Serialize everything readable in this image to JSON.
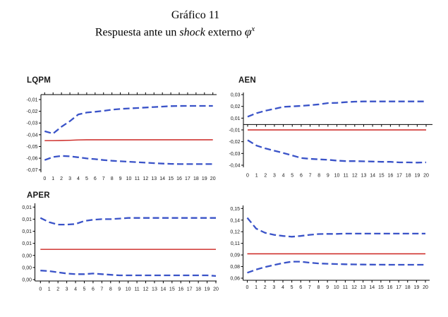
{
  "header": {
    "line1": "Gráfico 11",
    "line2_prefix": "Respuesta ante un ",
    "line2_italic": "shock",
    "line2_suffix": " externo ",
    "line2_symbol": "φ",
    "line2_superscript": "x"
  },
  "colors": {
    "band": "#3a53c8",
    "center": "#cc2420",
    "axis": "#000000",
    "background": "#ffffff"
  },
  "chart_data": [
    {
      "type": "line",
      "title": "LQPM",
      "x_axis_position": "top",
      "x_labels": [
        "0",
        "1",
        "2",
        "3",
        "4",
        "5",
        "6",
        "7",
        "8",
        "9",
        "10",
        "11",
        "12",
        "13",
        "14",
        "15",
        "16",
        "17",
        "18",
        "19",
        "20"
      ],
      "y_axis_labels": [
        "-0,01",
        "-0,02",
        "-0,03",
        "-0,04",
        "-0,05",
        "-0,06",
        "-0,07"
      ],
      "y_anchor_values": [
        -0.01,
        -0.02,
        -0.03,
        -0.04,
        -0.05,
        -0.06,
        -0.07
      ],
      "series": [
        {
          "name": "upper-band",
          "style": "dashed",
          "color": "#3a53c8",
          "values": [
            -0.037,
            -0.039,
            -0.0332,
            -0.0284,
            -0.0227,
            -0.0211,
            -0.0204,
            -0.0196,
            -0.0186,
            -0.018,
            -0.0176,
            -0.0172,
            -0.0168,
            -0.0164,
            -0.016,
            -0.0156,
            -0.0155,
            -0.0154,
            -0.0154,
            -0.0154,
            -0.0154
          ]
        },
        {
          "name": "center-estimate",
          "style": "solid",
          "color": "#cc2420",
          "values": [
            -0.045,
            -0.045,
            -0.0449,
            -0.0447,
            -0.0444,
            -0.0443,
            -0.0443,
            -0.0443,
            -0.0443,
            -0.0443,
            -0.0443,
            -0.0443,
            -0.0443,
            -0.0443,
            -0.0443,
            -0.0443,
            -0.0443,
            -0.0443,
            -0.0443,
            -0.0443,
            -0.0443
          ]
        },
        {
          "name": "lower-band",
          "style": "dashed",
          "color": "#3a53c8",
          "values": [
            -0.0616,
            -0.059,
            -0.058,
            -0.0584,
            -0.0592,
            -0.0602,
            -0.0608,
            -0.0616,
            -0.0622,
            -0.0626,
            -0.063,
            -0.0634,
            -0.0638,
            -0.0642,
            -0.0646,
            -0.0648,
            -0.065,
            -0.065,
            -0.065,
            -0.065,
            -0.065
          ]
        }
      ]
    },
    {
      "type": "line",
      "title": "AEN",
      "x_axis_position": "zero",
      "x_labels": [
        "0",
        "1",
        "2",
        "3",
        "4",
        "5",
        "6",
        "7",
        "8",
        "9",
        "10",
        "11",
        "12",
        "13",
        "14",
        "15",
        "16",
        "17",
        "18",
        "19",
        "20"
      ],
      "y_axis_labels": [
        "0,03",
        "0,02",
        "0,01",
        "-0,01",
        "-0,02",
        "-0,03",
        "-0,04"
      ],
      "y_anchor_values": [
        0.03,
        0.02,
        0.01,
        -0.01,
        -0.02,
        -0.03,
        -0.04
      ],
      "series": [
        {
          "name": "upper-band",
          "style": "dashed",
          "color": "#3a53c8",
          "values": [
            0.0112,
            0.0142,
            0.0163,
            0.0179,
            0.0196,
            0.02,
            0.0204,
            0.021,
            0.0217,
            0.0228,
            0.023,
            0.0236,
            0.024,
            0.0242,
            0.0242,
            0.0242,
            0.0242,
            0.0242,
            0.0242,
            0.0242,
            0.0242
          ]
        },
        {
          "name": "center-estimate",
          "style": "solid",
          "color": "#cc2420",
          "values": [
            -0.01,
            -0.01,
            -0.01,
            -0.01,
            -0.01,
            -0.01,
            -0.01,
            -0.01,
            -0.01,
            -0.01,
            -0.01,
            -0.01,
            -0.01,
            -0.01,
            -0.01,
            -0.01,
            -0.01,
            -0.01,
            -0.01,
            -0.01,
            -0.01
          ]
        },
        {
          "name": "lower-band",
          "style": "dashed",
          "color": "#3a53c8",
          "values": [
            -0.0187,
            -0.0233,
            -0.0258,
            -0.0277,
            -0.0296,
            -0.0317,
            -0.0339,
            -0.0346,
            -0.035,
            -0.0354,
            -0.0361,
            -0.0365,
            -0.0365,
            -0.0367,
            -0.0369,
            -0.0371,
            -0.0371,
            -0.0376,
            -0.0376,
            -0.0378,
            -0.0376
          ]
        }
      ]
    },
    {
      "type": "line",
      "title": "APER",
      "x_axis_position": "bottom",
      "x_labels": [
        "0",
        "1",
        "2",
        "3",
        "4",
        "5",
        "6",
        "7",
        "8",
        "9",
        "10",
        "11",
        "12",
        "13",
        "14",
        "15",
        "16",
        "17",
        "18",
        "19",
        "20"
      ],
      "y_axis_labels": [
        "0,01",
        "0,01",
        "0,01",
        "0,01",
        "0,00",
        "0,00",
        "0,00"
      ],
      "y_anchor_values": [
        0.012,
        0.01,
        0.008,
        0.006,
        0.004,
        0.002,
        0
      ],
      "series": [
        {
          "name": "upper-band",
          "style": "dashed",
          "color": "#3a53c8",
          "values": [
            0.0102,
            0.0095,
            0.0091,
            0.0091,
            0.0092,
            0.0097,
            0.0099,
            0.01,
            0.01,
            0.0101,
            0.0102,
            0.0102,
            0.0102,
            0.0102,
            0.0102,
            0.0102,
            0.0102,
            0.0102,
            0.0102,
            0.0102,
            0.0102
          ]
        },
        {
          "name": "center-estimate",
          "style": "solid",
          "color": "#cc2420",
          "values": [
            0.005,
            0.005,
            0.005,
            0.005,
            0.005,
            0.005,
            0.005,
            0.005,
            0.005,
            0.005,
            0.005,
            0.005,
            0.005,
            0.005,
            0.005,
            0.005,
            0.005,
            0.005,
            0.005,
            0.005,
            0.005
          ]
        },
        {
          "name": "lower-band",
          "style": "dashed",
          "color": "#3a53c8",
          "values": [
            0.0015,
            0.0014,
            0.0012,
            0.001,
            0.0009,
            0.0009,
            0.001,
            0.0009,
            0.0008,
            0.0007,
            0.0007,
            0.0007,
            0.0007,
            0.0007,
            0.0007,
            0.0007,
            0.0007,
            0.0007,
            0.0007,
            0.0007,
            0.0006
          ]
        }
      ]
    },
    {
      "type": "line",
      "title": "",
      "x_axis_position": "bottom",
      "x_labels": [
        "0",
        "1",
        "2",
        "3",
        "4",
        "5",
        "6",
        "7",
        "8",
        "9",
        "10",
        "11",
        "12",
        "13",
        "14",
        "15",
        "16",
        "17",
        "18",
        "19",
        "20"
      ],
      "y_axis_labels": [
        "0,15",
        "0,14",
        "0,12",
        "0,11",
        "0,09",
        "0,08",
        "0,06"
      ],
      "y_anchor_values": [
        0.15,
        0.135,
        0.12,
        0.105,
        0.09,
        0.075,
        0.06
      ],
      "series": [
        {
          "name": "upper-band",
          "style": "dashed",
          "color": "#3a53c8",
          "values": [
            0.138,
            0.124,
            0.1185,
            0.116,
            0.1145,
            0.1135,
            0.1145,
            0.116,
            0.117,
            0.1172,
            0.1172,
            0.1175,
            0.1175,
            0.1175,
            0.1175,
            0.1175,
            0.1175,
            0.1175,
            0.1175,
            0.1175,
            0.1175
          ]
        },
        {
          "name": "center-estimate",
          "style": "solid",
          "color": "#cc2420",
          "values": [
            0.0915,
            0.0915,
            0.0915,
            0.0915,
            0.0915,
            0.0915,
            0.0915,
            0.0915,
            0.0915,
            0.0915,
            0.0915,
            0.0915,
            0.0915,
            0.0915,
            0.0915,
            0.0915,
            0.0915,
            0.0915,
            0.0915,
            0.0915,
            0.0915
          ]
        },
        {
          "name": "lower-band",
          "style": "dashed",
          "color": "#3a53c8",
          "values": [
            0.067,
            0.0711,
            0.0744,
            0.077,
            0.0795,
            0.0813,
            0.0813,
            0.08,
            0.0791,
            0.0786,
            0.0782,
            0.078,
            0.0778,
            0.0776,
            0.0775,
            0.0774,
            0.0773,
            0.0773,
            0.0773,
            0.0773,
            0.0773
          ]
        }
      ]
    }
  ]
}
